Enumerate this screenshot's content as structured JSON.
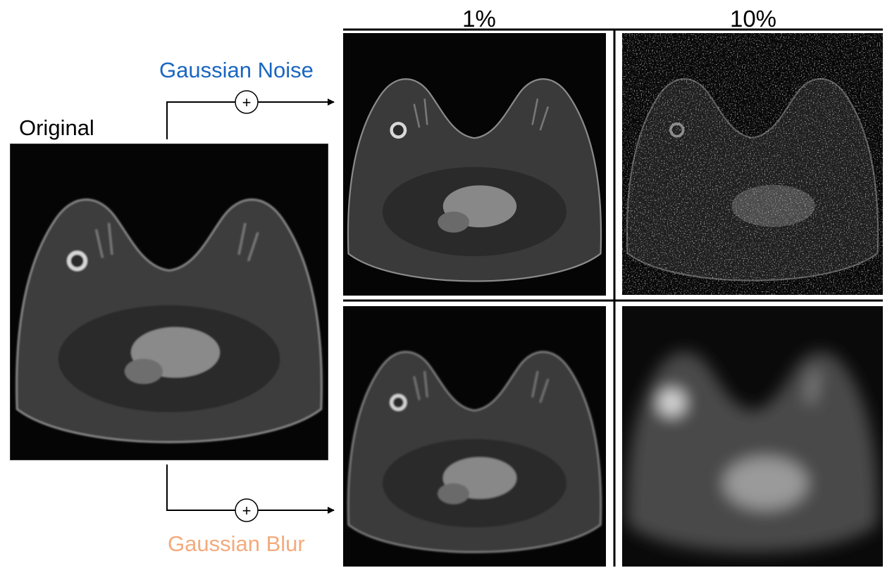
{
  "labels": {
    "original": "Original",
    "gaussian_noise": "Gaussian Noise",
    "gaussian_blur": "Gaussian Blur"
  },
  "columns": [
    "1%",
    "10%"
  ],
  "operator_symbol": "+",
  "colors": {
    "noise_label": "#1a66c2",
    "blur_label": "#f4aa7c",
    "line": "#000000"
  },
  "panels": [
    {
      "id": "original",
      "description_icon": "mri-image"
    },
    {
      "id": "noise-1",
      "level": "1%"
    },
    {
      "id": "noise-10",
      "level": "10%"
    },
    {
      "id": "blur-1",
      "level": "1%"
    },
    {
      "id": "blur-10",
      "level": "10%"
    }
  ]
}
